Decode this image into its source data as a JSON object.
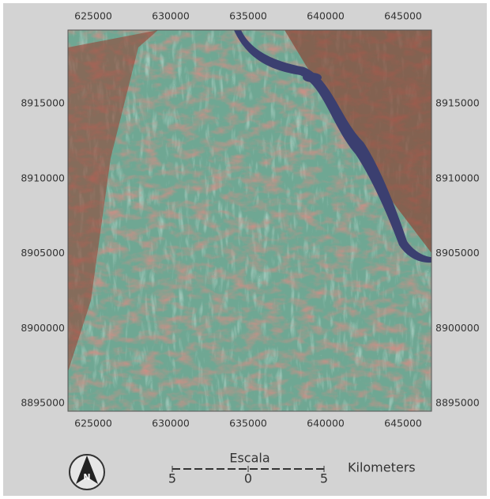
{
  "map": {
    "x_ticks": [
      625000,
      630000,
      635000,
      640000,
      645000
    ],
    "y_ticks": [
      8915000,
      8910000,
      8905000,
      8900000,
      8895000
    ],
    "north_arrow": "N",
    "scale": {
      "title": "Escala",
      "labels": [
        "5",
        "0",
        "5"
      ],
      "unit": "Kilometers"
    }
  }
}
